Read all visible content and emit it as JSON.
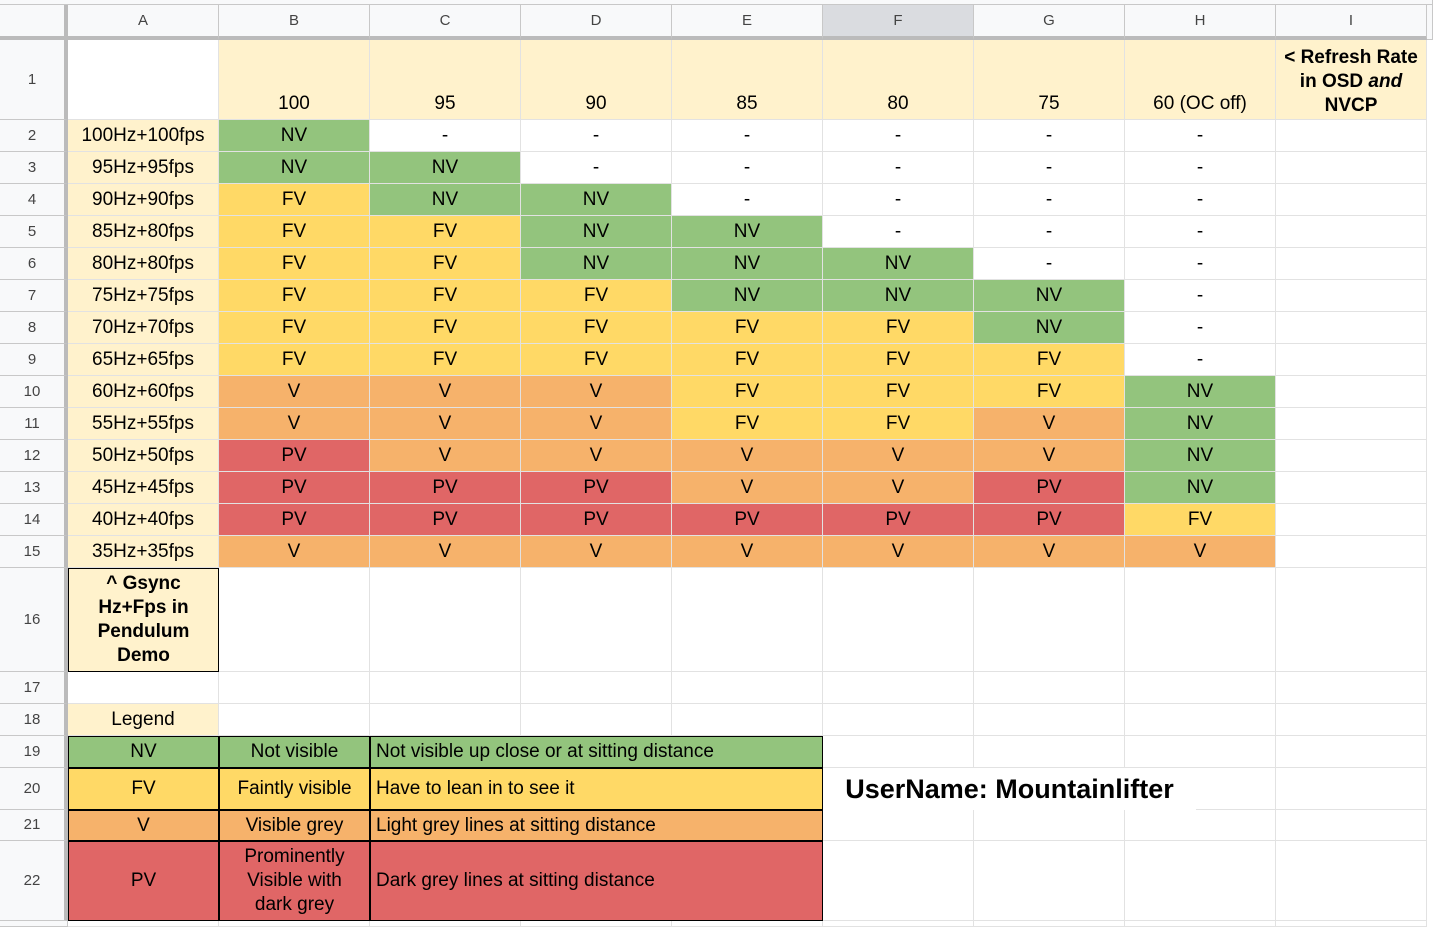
{
  "sheet": {
    "columns": [
      "A",
      "B",
      "C",
      "D",
      "E",
      "F",
      "G",
      "H",
      "I"
    ],
    "rows": [
      1,
      2,
      3,
      4,
      5,
      6,
      7,
      8,
      9,
      10,
      11,
      12,
      13,
      14,
      15,
      16,
      17,
      18,
      19,
      20,
      21,
      22
    ]
  },
  "header_row": {
    "refresh_rates": [
      100,
      95,
      90,
      85,
      80,
      75,
      "60 (OC off)"
    ],
    "note": [
      "< Refresh Rate in OSD ",
      "and",
      " NVCP"
    ]
  },
  "matrix": {
    "rows": [
      {
        "label": "100Hz+100fps",
        "values": [
          "NV",
          "-",
          "-",
          "-",
          "-",
          "-",
          "-"
        ]
      },
      {
        "label": "95Hz+95fps",
        "values": [
          "NV",
          "NV",
          "-",
          "-",
          "-",
          "-",
          "-"
        ]
      },
      {
        "label": "90Hz+90fps",
        "values": [
          "FV",
          "NV",
          "NV",
          "-",
          "-",
          "-",
          "-"
        ]
      },
      {
        "label": "85Hz+80fps",
        "values": [
          "FV",
          "FV",
          "NV",
          "NV",
          "-",
          "-",
          "-"
        ]
      },
      {
        "label": "80Hz+80fps",
        "values": [
          "FV",
          "FV",
          "NV",
          "NV",
          "NV",
          "-",
          "-"
        ]
      },
      {
        "label": "75Hz+75fps",
        "values": [
          "FV",
          "FV",
          "FV",
          "NV",
          "NV",
          "NV",
          "-"
        ]
      },
      {
        "label": "70Hz+70fps",
        "values": [
          "FV",
          "FV",
          "FV",
          "FV",
          "FV",
          "NV",
          "-"
        ]
      },
      {
        "label": "65Hz+65fps",
        "values": [
          "FV",
          "FV",
          "FV",
          "FV",
          "FV",
          "FV",
          "-"
        ]
      },
      {
        "label": "60Hz+60fps",
        "values": [
          "V",
          "V",
          "V",
          "FV",
          "FV",
          "FV",
          "NV"
        ]
      },
      {
        "label": "55Hz+55fps",
        "values": [
          "V",
          "V",
          "V",
          "FV",
          "FV",
          "V",
          "NV"
        ]
      },
      {
        "label": "50Hz+50fps",
        "values": [
          "PV",
          "V",
          "V",
          "V",
          "V",
          "V",
          "NV"
        ]
      },
      {
        "label": "45Hz+45fps",
        "values": [
          "PV",
          "PV",
          "PV",
          "V",
          "V",
          "PV",
          "NV"
        ]
      },
      {
        "label": "40Hz+40fps",
        "values": [
          "PV",
          "PV",
          "PV",
          "PV",
          "PV",
          "PV",
          "FV"
        ]
      },
      {
        "label": "35Hz+35fps",
        "values": [
          "V",
          "V",
          "V",
          "V",
          "V",
          "V",
          "V"
        ]
      }
    ],
    "note": "^ Gsync Hz+Fps in Pendulum Demo"
  },
  "legend": {
    "title": "Legend",
    "items": [
      {
        "code": "NV",
        "name": "Not visible",
        "description": "Not visible up close or at sitting distance",
        "color": "#93c47d"
      },
      {
        "code": "FV",
        "name": "Faintly visible",
        "description": "Have to lean in to see it",
        "color": "#ffd966"
      },
      {
        "code": "V",
        "name": "Visible grey",
        "description": "Light grey lines at sitting distance",
        "color": "#f6b26b"
      },
      {
        "code": "PV",
        "name": "Prominently Visible with dark grey",
        "description": "Dark grey lines at sitting distance",
        "color": "#e06666"
      }
    ]
  },
  "username": "UserName: Mountainlifter"
}
